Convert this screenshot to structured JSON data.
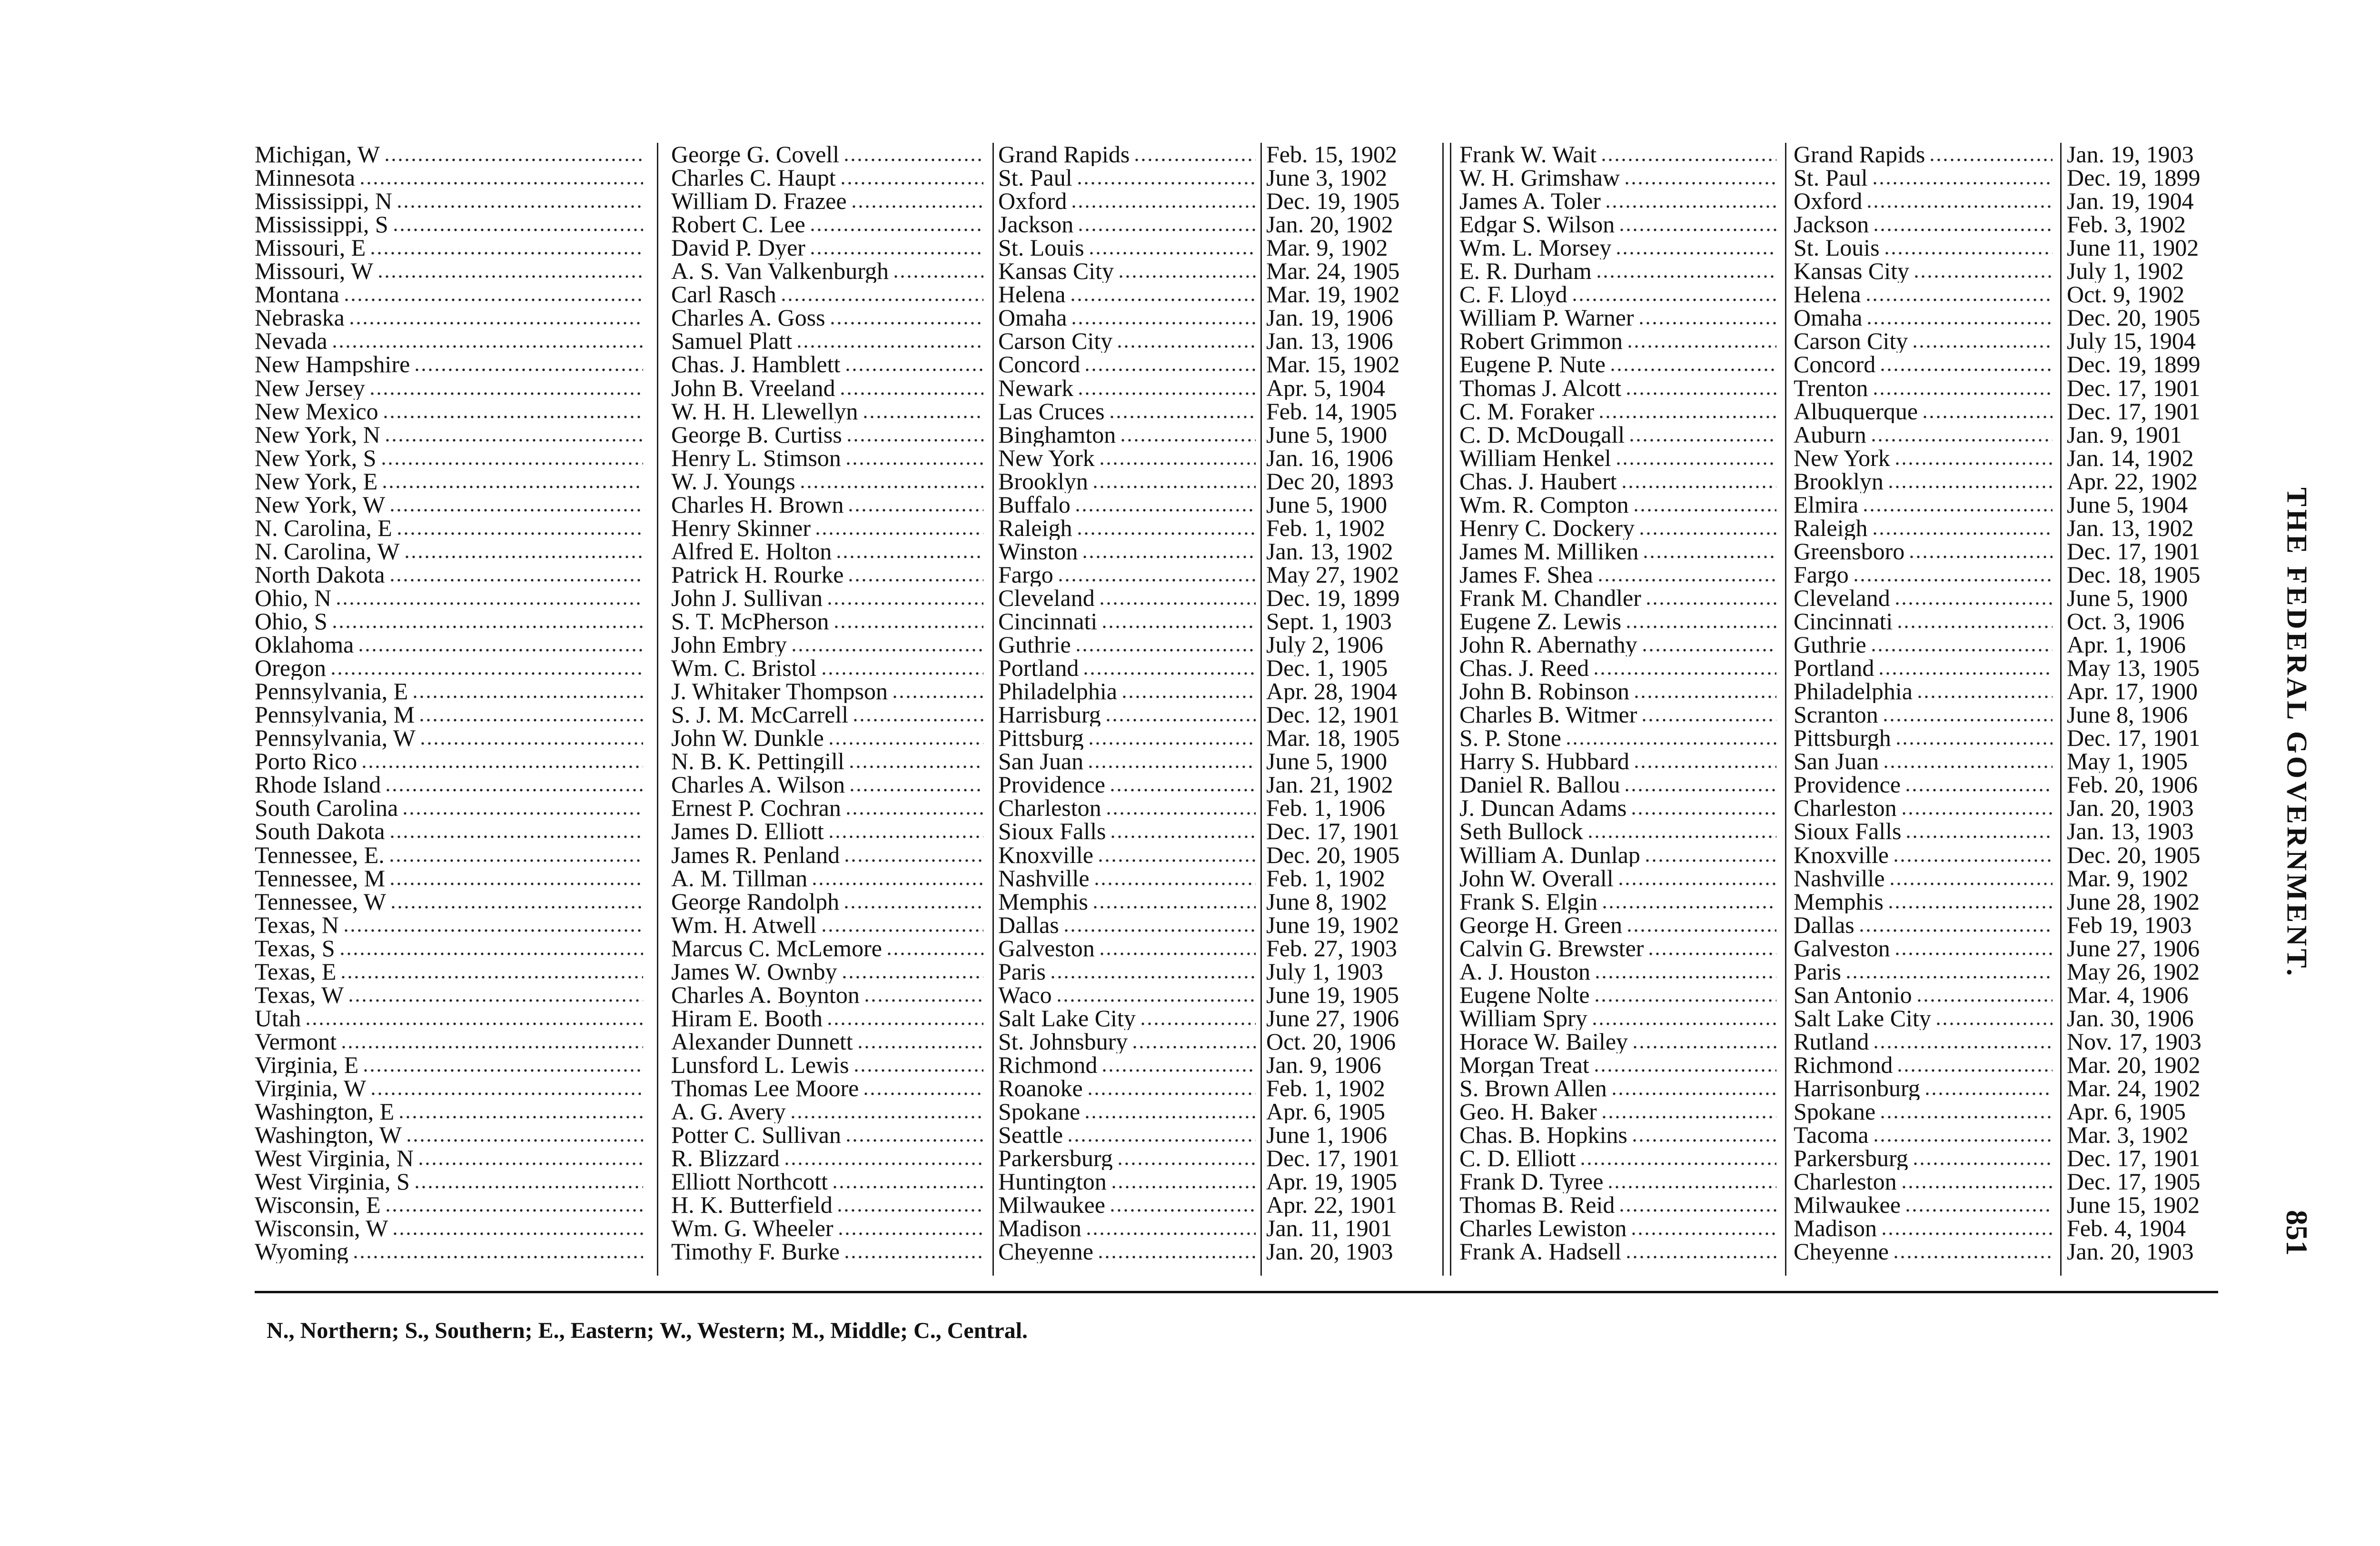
{
  "side_title": "THE FEDERAL GOVERNMENT.",
  "page_number": "851",
  "footnote": "N., Northern; S., Southern; E., Eastern; W., Western; M., Middle; C., Central.",
  "rows": [
    [
      "Michigan, W",
      "George G. Covell",
      "Grand Rapids",
      "Feb. 15, 1902",
      "Frank W. Wait",
      "Grand Rapids",
      "Jan. 19, 1903"
    ],
    [
      "Minnesota",
      "Charles C. Haupt",
      "St. Paul",
      "June 3, 1902",
      "W. H. Grimshaw",
      "St. Paul",
      "Dec. 19, 1899"
    ],
    [
      "Mississippi, N",
      "William D. Frazee",
      "Oxford",
      "Dec. 19, 1905",
      "James A. Toler",
      "Oxford",
      "Jan. 19, 1904"
    ],
    [
      "Mississippi, S",
      "Robert C. Lee",
      "Jackson",
      "Jan. 20, 1902",
      "Edgar S. Wilson",
      "Jackson",
      "Feb. 3, 1902"
    ],
    [
      "Missouri, E",
      "David P. Dyer",
      "St. Louis",
      "Mar. 9, 1902",
      "Wm. L. Morsey",
      "St. Louis",
      "June 11, 1902"
    ],
    [
      "Missouri, W",
      "A. S. Van Valkenburgh",
      "Kansas City",
      "Mar. 24, 1905",
      "E. R. Durham",
      "Kansas City",
      "July 1, 1902"
    ],
    [
      "Montana",
      "Carl Rasch",
      "Helena",
      "Mar. 19, 1902",
      "C. F. Lloyd",
      "Helena",
      "Oct. 9, 1902"
    ],
    [
      "Nebraska",
      "Charles A. Goss",
      "Omaha",
      "Jan. 19, 1906",
      "William P. Warner",
      "Omaha",
      "Dec. 20, 1905"
    ],
    [
      "Nevada",
      "Samuel Platt",
      "Carson City",
      "Jan. 13, 1906",
      "Robert Grimmon",
      "Carson City",
      "July 15, 1904"
    ],
    [
      "New Hampshire",
      "Chas. J. Hamblett",
      "Concord",
      "Mar. 15, 1902",
      "Eugene P. Nute",
      "Concord",
      "Dec. 19, 1899"
    ],
    [
      "New Jersey",
      "John B. Vreeland",
      "Newark",
      "Apr. 5, 1904",
      "Thomas J. Alcott",
      "Trenton",
      "Dec. 17, 1901"
    ],
    [
      "New Mexico",
      "W. H. H. Llewellyn",
      "Las Cruces",
      "Feb. 14, 1905",
      "C. M. Foraker",
      "Albuquerque",
      "Dec. 17, 1901"
    ],
    [
      "New York, N",
      "George B. Curtiss",
      "Binghamton",
      "June 5, 1900",
      "C. D. McDougall",
      "Auburn",
      "Jan. 9, 1901"
    ],
    [
      "New York, S",
      "Henry L. Stimson",
      "New York",
      "Jan. 16, 1906",
      "William Henkel",
      "New York",
      "Jan. 14, 1902"
    ],
    [
      "New York, E",
      "W. J. Youngs",
      "Brooklyn",
      "Dec 20, 1893",
      "Chas. J. Haubert",
      "Brooklyn",
      "Apr. 22, 1902"
    ],
    [
      "New York, W",
      "Charles H. Brown",
      "Buffalo",
      "June 5, 1900",
      "Wm. R. Compton",
      "Elmira",
      "June 5, 1904"
    ],
    [
      "N. Carolina, E",
      "Henry Skinner",
      "Raleigh",
      "Feb. 1, 1902",
      "Henry C. Dockery",
      "Raleigh",
      "Jan. 13, 1902"
    ],
    [
      "N. Carolina, W",
      "Alfred E. Holton",
      "Winston",
      "Jan. 13, 1902",
      "James M. Milliken",
      "Greensboro",
      "Dec. 17, 1901"
    ],
    [
      "North Dakota",
      "Patrick H. Rourke",
      "Fargo",
      "May 27, 1902",
      "James F. Shea",
      "Fargo",
      "Dec. 18, 1905"
    ],
    [
      "Ohio, N",
      "John J. Sullivan",
      "Cleveland",
      "Dec. 19, 1899",
      "Frank M. Chandler",
      "Cleveland",
      "June 5, 1900"
    ],
    [
      "Ohio, S",
      "S. T. McPherson",
      "Cincinnati",
      "Sept. 1, 1903",
      "Eugene Z. Lewis",
      "Cincinnati",
      "Oct. 3, 1906"
    ],
    [
      "Oklahoma",
      "John Embry",
      "Guthrie",
      "July 2, 1906",
      "John R. Abernathy",
      "Guthrie",
      "Apr. 1, 1906"
    ],
    [
      "Oregon",
      "Wm. C. Bristol",
      "Portland",
      "Dec. 1, 1905",
      "Chas. J. Reed",
      "Portland",
      "May 13, 1905"
    ],
    [
      "Pennsylvania, E",
      "J. Whitaker Thompson",
      "Philadelphia",
      "Apr. 28, 1904",
      "John B. Robinson",
      "Philadelphia",
      "Apr. 17, 1900"
    ],
    [
      "Pennsylvania, M",
      "S. J. M. McCarrell",
      "Harrisburg",
      "Dec. 12, 1901",
      "Charles B. Witmer",
      "Scranton",
      "June 8, 1906"
    ],
    [
      "Pennsylvania, W",
      "John W. Dunkle",
      "Pittsburg",
      "Mar. 18, 1905",
      "S. P. Stone",
      "Pittsburgh",
      "Dec. 17, 1901"
    ],
    [
      "Porto Rico",
      "N. B. K. Pettingill",
      "San Juan",
      "June 5, 1900",
      "Harry S. Hubbard",
      "San Juan",
      "May 1, 1905"
    ],
    [
      "Rhode Island",
      "Charles A. Wilson",
      "Providence",
      "Jan. 21, 1902",
      "Daniel R. Ballou",
      "Providence",
      "Feb. 20, 1906"
    ],
    [
      "South Carolina",
      "Ernest P. Cochran",
      "Charleston",
      "Feb. 1, 1906",
      "J. Duncan Adams",
      "Charleston",
      "Jan. 20, 1903"
    ],
    [
      "South Dakota",
      "James D. Elliott",
      "Sioux Falls",
      "Dec. 17, 1901",
      "Seth Bullock",
      "Sioux Falls",
      "Jan. 13, 1903"
    ],
    [
      "Tennessee, E.",
      "James R. Penland",
      "Knoxville",
      "Dec. 20, 1905",
      "William A. Dunlap",
      "Knoxville",
      "Dec. 20, 1905"
    ],
    [
      "Tennessee, M",
      "A. M. Tillman",
      "Nashville",
      "Feb. 1, 1902",
      "John W. Overall",
      "Nashville",
      "Mar. 9, 1902"
    ],
    [
      "Tennessee, W",
      "George Randolph",
      "Memphis",
      "June 8, 1902",
      "Frank S. Elgin",
      "Memphis",
      "June 28, 1902"
    ],
    [
      "Texas, N",
      "Wm. H. Atwell",
      "Dallas",
      "June 19, 1902",
      "George H. Green",
      "Dallas",
      "Feb 19, 1903"
    ],
    [
      "Texas, S",
      "Marcus C. McLemore",
      "Galveston",
      "Feb. 27, 1903",
      "Calvin G. Brewster",
      "Galveston",
      "June 27, 1906"
    ],
    [
      "Texas, E",
      "James W. Ownby",
      "Paris",
      "July 1, 1903",
      "A. J. Houston",
      "Paris",
      "May 26, 1902"
    ],
    [
      "Texas, W",
      "Charles A. Boynton",
      "Waco",
      "June 19, 1905",
      "Eugene Nolte",
      "San Antonio",
      "Mar. 4, 1906"
    ],
    [
      "Utah",
      "Hiram E. Booth",
      "Salt Lake City",
      "June 27, 1906",
      "William Spry",
      "Salt Lake City",
      "Jan. 30, 1906"
    ],
    [
      "Vermont",
      "Alexander Dunnett",
      "St. Johnsbury",
      "Oct. 20, 1906",
      "Horace W. Bailey",
      "Rutland",
      "Nov. 17, 1903"
    ],
    [
      "Virginia, E",
      "Lunsford L. Lewis",
      "Richmond",
      "Jan. 9, 1906",
      "Morgan Treat",
      "Richmond",
      "Mar. 20, 1902"
    ],
    [
      "Virginia, W",
      "Thomas Lee Moore",
      "Roanoke",
      "Feb. 1, 1902",
      "S. Brown Allen",
      "Harrisonburg",
      "Mar. 24, 1902"
    ],
    [
      "Washington, E",
      "A. G. Avery",
      "Spokane",
      "Apr. 6, 1905",
      "Geo. H. Baker",
      "Spokane",
      "Apr. 6, 1905"
    ],
    [
      "Washington, W",
      "Potter C. Sullivan",
      "Seattle",
      "June 1, 1906",
      "Chas. B. Hopkins",
      "Tacoma",
      "Mar. 3, 1902"
    ],
    [
      "West Virginia, N",
      "R. Blizzard",
      "Parkersburg",
      "Dec. 17, 1901",
      "C. D. Elliott",
      "Parkersburg",
      "Dec. 17, 1901"
    ],
    [
      "West Virginia, S",
      "Elliott Northcott",
      "Huntington",
      "Apr. 19, 1905",
      "Frank D. Tyree",
      "Charleston",
      "Dec. 17, 1905"
    ],
    [
      "Wisconsin, E",
      "H. K. Butterfield",
      "Milwaukee",
      "Apr. 22, 1901",
      "Thomas B. Reid",
      "Milwaukee",
      "June 15, 1902"
    ],
    [
      "Wisconsin, W",
      "Wm. G. Wheeler",
      "Madison",
      "Jan. 11, 1901",
      "Charles Lewiston",
      "Madison",
      "Feb. 4, 1904"
    ],
    [
      "Wyoming",
      "Timothy F. Burke",
      "Cheyenne",
      "Jan. 20, 1903",
      "Frank A. Hadsell",
      "Cheyenne",
      "Jan. 20, 1903"
    ]
  ]
}
